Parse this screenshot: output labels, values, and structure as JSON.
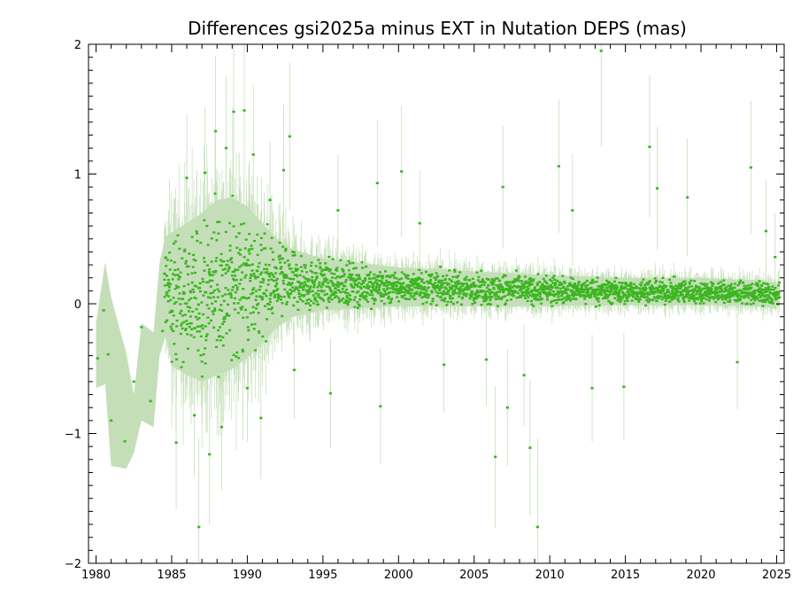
{
  "chart_data": {
    "type": "scatter",
    "title": "Differences gsi2025a minus EXT in Nutation DEPS (mas)",
    "xlabel": "",
    "ylabel": "",
    "xlim": [
      1979.5,
      2025.5
    ],
    "ylim": [
      -2,
      2
    ],
    "x_ticks": [
      1980,
      1985,
      1990,
      1995,
      2000,
      2005,
      2010,
      2015,
      2020,
      2025
    ],
    "x_tick_labels": [
      "1980",
      "1985",
      "1990",
      "1995",
      "2000",
      "2005",
      "2010",
      "2015",
      "2020",
      "2025"
    ],
    "y_ticks": [
      -2,
      -1,
      0,
      1,
      2
    ],
    "y_tick_labels": [
      "−2",
      "−1",
      "0",
      "1",
      "2"
    ],
    "grid": false,
    "point_color": "#3cb521",
    "band_color": "#c4dfb8",
    "band_envelope": {
      "x": [
        1980.0,
        1980.6,
        1981.0,
        1982.0,
        1982.5,
        1983.0,
        1983.8,
        1984.2,
        1984.6,
        1985.0,
        1986.0,
        1987.0,
        1988.0,
        1989.0,
        1990.0,
        1991.0,
        1992.0,
        1993.0,
        1995.0,
        2000.0,
        2005.0,
        2010.0,
        2015.0,
        2020.0,
        2024.0,
        2025.0
      ],
      "upper": [
        -0.15,
        0.32,
        0.05,
        -0.38,
        -0.7,
        -0.15,
        -0.22,
        0.32,
        0.52,
        0.55,
        0.62,
        0.7,
        0.8,
        0.82,
        0.75,
        0.62,
        0.5,
        0.42,
        0.35,
        0.28,
        0.25,
        0.22,
        0.2,
        0.2,
        0.18,
        0.16
      ],
      "lower": [
        -0.65,
        -0.62,
        -1.25,
        -1.27,
        -1.15,
        -0.9,
        -0.95,
        -0.4,
        -0.25,
        -0.48,
        -0.55,
        -0.6,
        -0.55,
        -0.5,
        -0.42,
        -0.3,
        -0.18,
        -0.1,
        -0.05,
        -0.02,
        -0.02,
        -0.02,
        -0.01,
        -0.01,
        -0.02,
        -0.04
      ]
    },
    "series": [
      {
        "x": [
          1980.1,
          1980.5,
          1980.8,
          1981.0,
          1981.9,
          1982.5,
          1983.0,
          1983.6,
          1984.4
        ],
        "y": [
          -0.42,
          -0.05,
          -0.39,
          -0.9,
          -1.06,
          -0.6,
          -0.18,
          -0.75,
          -0.21
        ]
      }
    ],
    "outliers": {
      "x": [
        1985.3,
        1986.0,
        1986.5,
        1986.8,
        1987.2,
        1987.5,
        1987.9,
        1988.3,
        1988.6,
        1989.1,
        1989.8,
        1990.0,
        1990.4,
        1990.9,
        1991.5,
        1992.4,
        1992.8,
        1993.1,
        1995.5,
        1996.0,
        1998.6,
        1998.8,
        2000.2,
        2001.4,
        2003.0,
        2005.8,
        2006.4,
        2006.9,
        2007.2,
        2008.3,
        2008.7,
        2009.2,
        2010.6,
        2011.5,
        2012.8,
        2013.4,
        2014.9,
        2016.6,
        2017.1,
        2019.1,
        2022.4,
        2023.3,
        2024.3,
        2024.9
      ],
      "y": [
        -1.07,
        0.97,
        -0.86,
        -1.72,
        1.01,
        -1.16,
        1.33,
        -0.95,
        1.2,
        1.48,
        1.49,
        -0.65,
        1.15,
        -0.88,
        0.8,
        1.03,
        1.29,
        -0.51,
        -0.69,
        0.72,
        0.93,
        -0.79,
        1.02,
        0.62,
        -0.47,
        -0.43,
        -1.18,
        0.9,
        -0.8,
        -0.55,
        -1.11,
        -1.72,
        1.06,
        0.72,
        -0.65,
        1.95,
        -0.64,
        1.21,
        0.89,
        0.82,
        -0.45,
        1.05,
        0.56,
        0.36
      ]
    }
  }
}
